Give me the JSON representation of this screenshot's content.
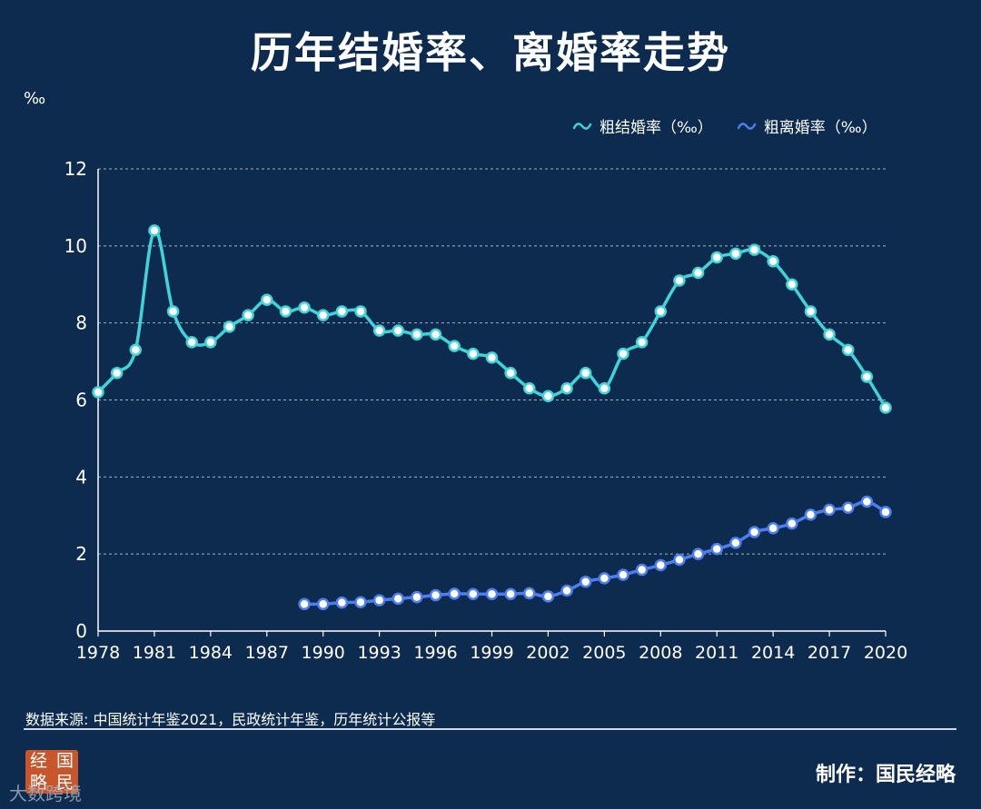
{
  "title": "历年结婚率、离婚率走势",
  "unit_label": "‰",
  "source": "数据来源: 中国统计年鉴2021，民政统计年鉴，历年统计公报等",
  "credit": "制作：国民经略",
  "logo_chars": [
    "经",
    "国",
    "略",
    "民"
  ],
  "watermark": "大数跨境",
  "colors": {
    "background": "#0c2b4f",
    "marriage": "#3fd4d8",
    "divorce": "#4d7ef0"
  },
  "chart_data": {
    "type": "line",
    "title": "历年结婚率、离婚率走势",
    "ylabel": "‰",
    "ylim": [
      0,
      12
    ],
    "yticks": [
      0,
      2,
      4,
      6,
      8,
      10,
      12
    ],
    "xlim": [
      1978,
      2020
    ],
    "xticks": [
      1978,
      1981,
      1984,
      1987,
      1990,
      1993,
      1996,
      1999,
      2002,
      2005,
      2008,
      2011,
      2014,
      2017,
      2020
    ],
    "grid": true,
    "legend_position": "top-right",
    "series": [
      {
        "name": "粗结婚率（‰）",
        "x": [
          1978,
          1979,
          1980,
          1981,
          1982,
          1983,
          1984,
          1985,
          1986,
          1987,
          1988,
          1989,
          1990,
          1991,
          1992,
          1993,
          1994,
          1995,
          1996,
          1997,
          1998,
          1999,
          2000,
          2001,
          2002,
          2003,
          2004,
          2005,
          2006,
          2007,
          2008,
          2009,
          2010,
          2011,
          2012,
          2013,
          2014,
          2015,
          2016,
          2017,
          2018,
          2019,
          2020
        ],
        "values": [
          6.2,
          6.7,
          7.3,
          10.4,
          8.3,
          7.5,
          7.5,
          7.9,
          8.2,
          8.6,
          8.3,
          8.4,
          8.2,
          8.3,
          8.3,
          7.8,
          7.8,
          7.7,
          7.7,
          7.4,
          7.2,
          7.1,
          6.7,
          6.3,
          6.1,
          6.3,
          6.7,
          6.3,
          7.2,
          7.5,
          8.3,
          9.1,
          9.3,
          9.7,
          9.8,
          9.9,
          9.6,
          9.0,
          8.3,
          7.7,
          7.3,
          6.6,
          5.8
        ]
      },
      {
        "name": "粗离婚率（‰）",
        "x": [
          1989,
          1990,
          1991,
          1992,
          1993,
          1994,
          1995,
          1996,
          1997,
          1998,
          1999,
          2000,
          2001,
          2002,
          2003,
          2004,
          2005,
          2006,
          2007,
          2008,
          2009,
          2010,
          2011,
          2012,
          2013,
          2014,
          2015,
          2016,
          2017,
          2018,
          2019,
          2020
        ],
        "values": [
          0.7,
          0.7,
          0.74,
          0.75,
          0.8,
          0.84,
          0.88,
          0.93,
          0.97,
          0.96,
          0.96,
          0.96,
          0.98,
          0.9,
          1.05,
          1.28,
          1.37,
          1.46,
          1.59,
          1.71,
          1.85,
          2.0,
          2.13,
          2.29,
          2.57,
          2.67,
          2.79,
          3.02,
          3.15,
          3.2,
          3.36,
          3.09
        ]
      }
    ]
  }
}
